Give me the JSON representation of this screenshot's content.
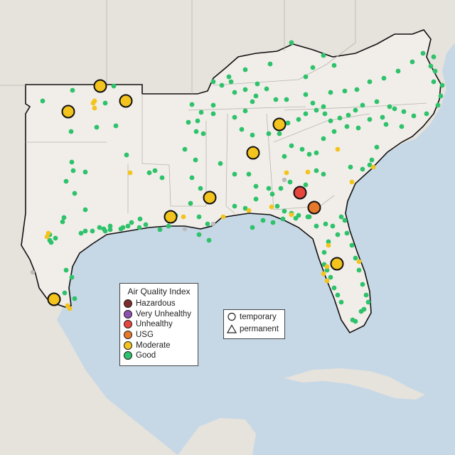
{
  "legend": {
    "title": "Air Quality Index",
    "categories": [
      {
        "label": "Hazardous",
        "color": "#7e2b2b"
      },
      {
        "label": "Very Unhealthy",
        "color": "#8e4fb0"
      },
      {
        "label": "Unhealthy",
        "color": "#e8463c"
      },
      {
        "label": "USG",
        "color": "#e5782a"
      },
      {
        "label": "Moderate",
        "color": "#f3c31e"
      },
      {
        "label": "Good",
        "color": "#2ec26a"
      }
    ]
  },
  "monitor_types": [
    {
      "label": "temporary",
      "symbol": "circle-icon"
    },
    {
      "label": "permanent",
      "symbol": "triangle-icon"
    }
  ],
  "colors": {
    "water": "#c6d8e6",
    "land_outside": "#e6e2dc",
    "land_region": "#f1eeea",
    "border": "#111111",
    "station_missing": "#bbbbbb"
  }
}
